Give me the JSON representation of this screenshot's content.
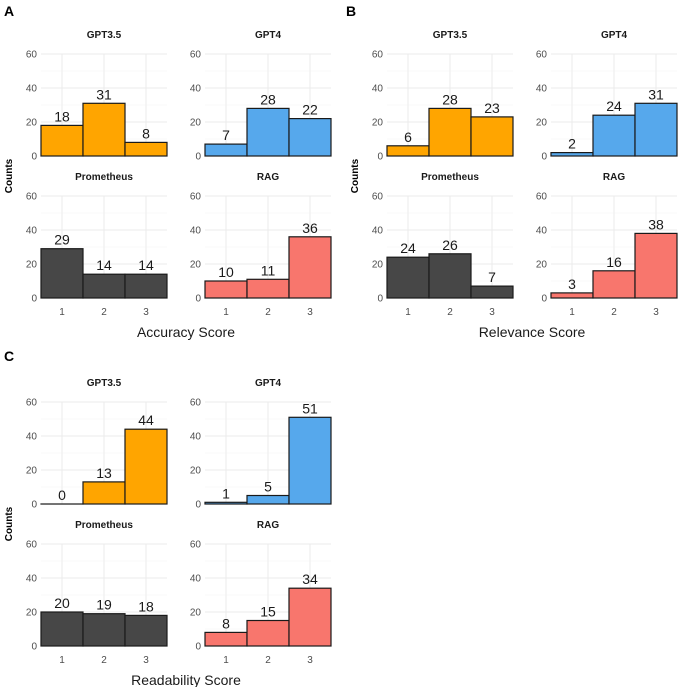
{
  "chart_data": [
    {
      "type": "bar",
      "panel_label": "A",
      "xlabel": "Accuracy Score",
      "ylabel": "Counts",
      "categories": [
        "1",
        "2",
        "3"
      ],
      "ylim": [
        0,
        60
      ],
      "yticks": [
        "0",
        "20",
        "40",
        "60"
      ],
      "series": [
        {
          "name": "GPT3.5",
          "color": "#FFA500",
          "values": [
            18,
            31,
            8
          ]
        },
        {
          "name": "GPT4",
          "color": "#56A8EC",
          "values": [
            7,
            28,
            22
          ]
        },
        {
          "name": "Prometheus",
          "color": "#474747",
          "values": [
            29,
            14,
            14
          ]
        },
        {
          "name": "RAG",
          "color": "#F8766D",
          "values": [
            10,
            11,
            36
          ]
        }
      ]
    },
    {
      "type": "bar",
      "panel_label": "B",
      "xlabel": "Relevance Score",
      "ylabel": "Counts",
      "categories": [
        "1",
        "2",
        "3"
      ],
      "ylim": [
        0,
        60
      ],
      "yticks": [
        "0",
        "20",
        "40",
        "60"
      ],
      "series": [
        {
          "name": "GPT3.5",
          "color": "#FFA500",
          "values": [
            6,
            28,
            23
          ]
        },
        {
          "name": "GPT4",
          "color": "#56A8EC",
          "values": [
            2,
            24,
            31
          ]
        },
        {
          "name": "Prometheus",
          "color": "#474747",
          "values": [
            24,
            26,
            7
          ]
        },
        {
          "name": "RAG",
          "color": "#F8766D",
          "values": [
            3,
            16,
            38
          ]
        }
      ]
    },
    {
      "type": "bar",
      "panel_label": "C",
      "xlabel": "Readability Score",
      "ylabel": "Counts",
      "categories": [
        "1",
        "2",
        "3"
      ],
      "ylim": [
        0,
        60
      ],
      "yticks": [
        "0",
        "20",
        "40",
        "60"
      ],
      "series": [
        {
          "name": "GPT3.5",
          "color": "#FFA500",
          "values": [
            0,
            13,
            44
          ]
        },
        {
          "name": "GPT4",
          "color": "#56A8EC",
          "values": [
            1,
            5,
            51
          ]
        },
        {
          "name": "Prometheus",
          "color": "#474747",
          "values": [
            20,
            19,
            18
          ]
        },
        {
          "name": "RAG",
          "color": "#F8766D",
          "values": [
            8,
            15,
            34
          ]
        }
      ]
    }
  ]
}
